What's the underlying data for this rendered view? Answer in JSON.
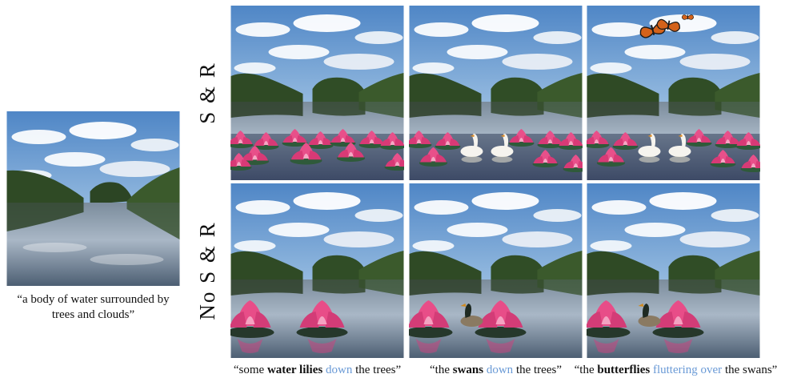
{
  "source": {
    "caption_open": "“a body of water surrounded by",
    "caption_close": "trees and clouds”"
  },
  "rows": [
    {
      "label": "S & R"
    },
    {
      "label": "No  S & R"
    }
  ],
  "columns": [
    {
      "quote_open": "“some ",
      "bold": "water lilies",
      "highlight": "down",
      "rest": " the trees”"
    },
    {
      "quote_open": "“the ",
      "bold": "swans",
      "highlight": "down",
      "rest": " the trees”"
    },
    {
      "quote_open": "“the ",
      "bold": "butterflies",
      "highlight": "fluttering over",
      "rest": " the swans”"
    }
  ],
  "colors": {
    "highlight": "#6a9ad6",
    "sky": "#8fb6dd",
    "water": "#6e8499",
    "lily": "#e0407a"
  }
}
